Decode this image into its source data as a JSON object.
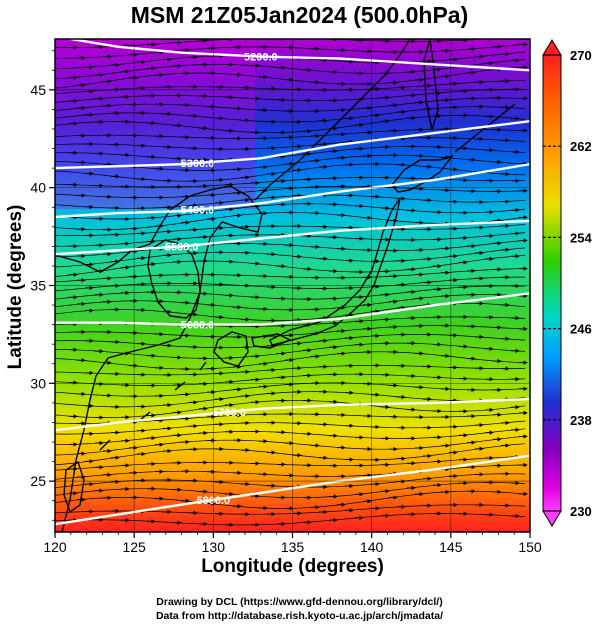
{
  "title": "MSM 21Z05Jan2024 (500.0hPa)",
  "xlabel": "Longitude (degrees)",
  "ylabel": "Latitude  (degrees)",
  "credit_line1": "Drawing by DCL (https://www.gfd-dennou.org/library/dcl/)",
  "credit_line2": "Data from http://database.rish.kyoto-u.ac.jp/arch/jmadata/",
  "map": {
    "lon_range": [
      120,
      150
    ],
    "lat_range": [
      22.4,
      47.6
    ],
    "lon_ticks": [
      "120",
      "125",
      "130",
      "135",
      "140",
      "145",
      "150"
    ],
    "lat_ticks": [
      "25",
      "30",
      "35",
      "40",
      "45"
    ],
    "field": "temperature",
    "colorbar": {
      "min": 230,
      "max": 270,
      "labels": [
        "270",
        "262",
        "254",
        "246",
        "238",
        "230"
      ],
      "colors": [
        "#ff2020",
        "#ff8a00",
        "#f0e000",
        "#30d000",
        "#00d0c0",
        "#00a0ff",
        "#2030d0",
        "#8000c0",
        "#e000e0",
        "#ff40ff"
      ]
    },
    "contours": [
      {
        "label": "5200.0",
        "lats": [
          47.6,
          47.2,
          46.9,
          46.7,
          46.6,
          46.3,
          46.0
        ],
        "lons": [
          121,
          124,
          128,
          133,
          138,
          144,
          150
        ]
      },
      {
        "label": "5300.0",
        "lats": [
          41.0,
          41.1,
          41.2,
          41.5,
          42.2,
          42.8,
          43.4
        ],
        "lons": [
          120,
          124,
          128,
          133,
          138,
          144,
          150
        ]
      },
      {
        "label": "5400.0",
        "lats": [
          38.5,
          38.7,
          38.8,
          39.2,
          39.8,
          40.4,
          41.2
        ],
        "lons": [
          120,
          124,
          128,
          133,
          138,
          144,
          150
        ]
      },
      {
        "label": "5500.0",
        "lats": [
          36.6,
          36.8,
          37.0,
          37.4,
          37.8,
          38.1,
          38.3
        ],
        "lons": [
          120,
          124,
          128,
          133,
          138,
          144,
          150
        ]
      },
      {
        "label": "5600.0",
        "lats": [
          33.1,
          33.1,
          33.0,
          33.0,
          33.3,
          34.0,
          34.6
        ],
        "lons": [
          120,
          124,
          128,
          133,
          138,
          144,
          150
        ]
      },
      {
        "label": "5700.0",
        "lats": [
          27.6,
          28.0,
          28.3,
          28.7,
          28.9,
          29.0,
          29.2
        ],
        "lons": [
          120,
          124,
          128,
          133,
          138,
          144,
          150
        ]
      },
      {
        "label": "5800.0",
        "lats": [
          22.8,
          23.3,
          23.8,
          24.4,
          25.0,
          25.6,
          26.3
        ],
        "lons": [
          120,
          124,
          128,
          133,
          138,
          144,
          150
        ]
      }
    ]
  }
}
